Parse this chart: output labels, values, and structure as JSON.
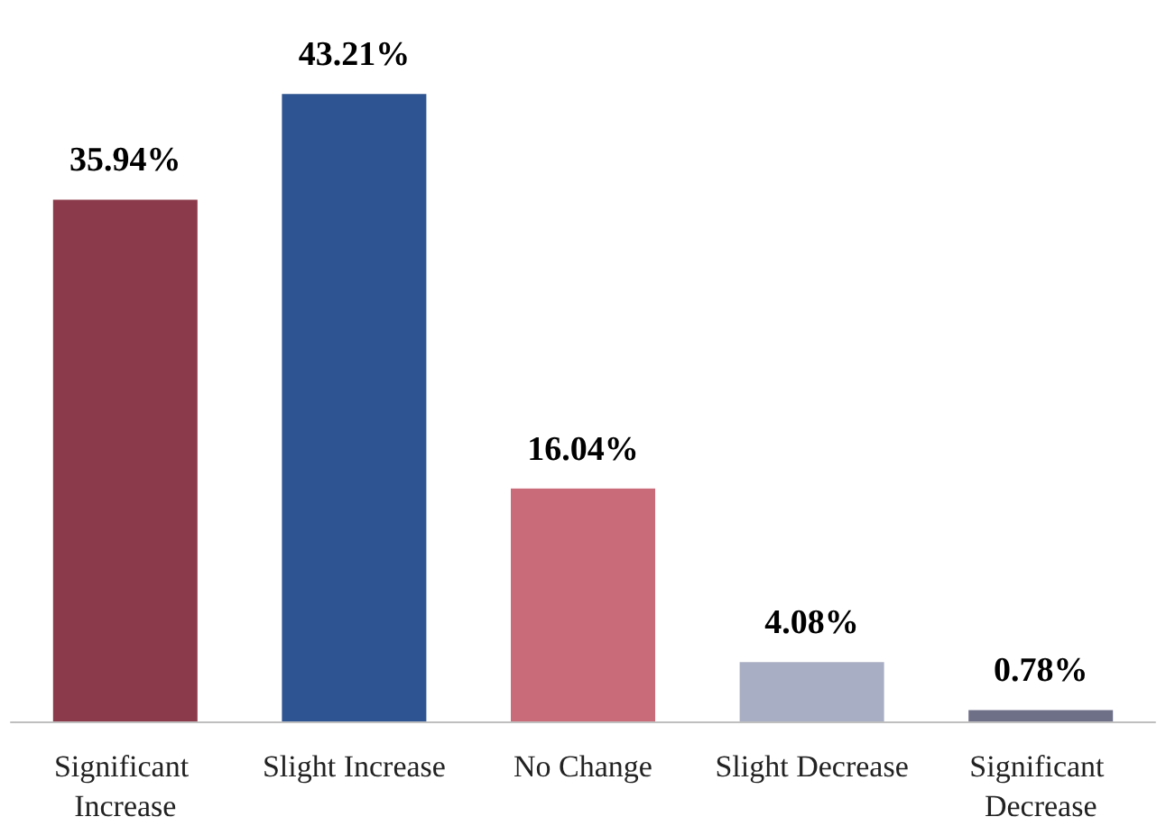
{
  "chart_data": {
    "type": "bar",
    "categories": [
      "Significant Increase",
      "Slight Increase",
      "No Change",
      "Slight Decrease",
      "Significant Decrease"
    ],
    "values": [
      35.94,
      43.21,
      16.04,
      4.08,
      0.78
    ],
    "colors": [
      "#8b3a4b",
      "#2e5591",
      "#c96b78",
      "#a8aec3",
      "#6e7088"
    ],
    "value_labels": [
      "35.94%",
      "43.21%",
      "16.04%",
      "4.08%",
      "0.78%"
    ]
  }
}
